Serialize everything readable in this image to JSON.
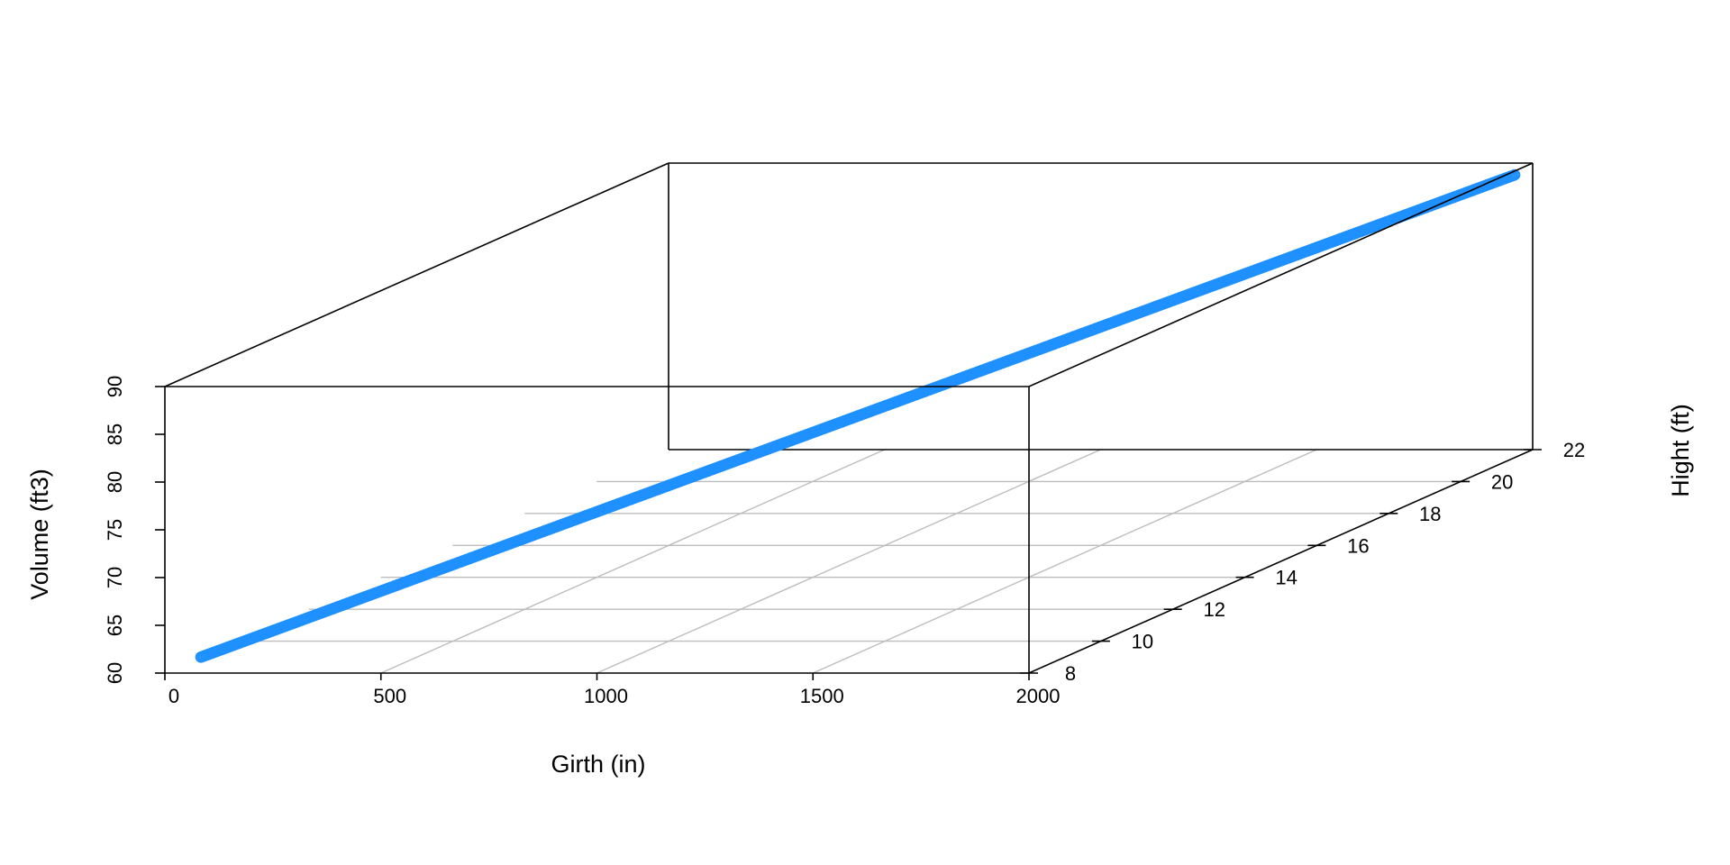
{
  "chart_data": {
    "type": "scatter",
    "title": "",
    "xlabel": "Girth (in)",
    "ylabel": "Hight (ft)",
    "zlabel": "Volume (ft3)",
    "xlim": [
      0,
      2000
    ],
    "ylim": [
      8,
      22
    ],
    "zlim": [
      60,
      90
    ],
    "x_ticks": [
      "0",
      "500",
      "1000",
      "1500",
      "2000"
    ],
    "y_ticks": [
      "8",
      "10",
      "12",
      "14",
      "16",
      "18",
      "20",
      "22"
    ],
    "z_ticks": [
      "60",
      "65",
      "70",
      "75",
      "80",
      "85",
      "90"
    ],
    "grid": true,
    "point_color": "#1E90FF",
    "series": [
      {
        "start": {
          "x": 50,
          "y": 8.4,
          "z": 61
        },
        "end": {
          "x": 2000,
          "y": 21.5,
          "z": 89.6
        },
        "count": 1000
      }
    ]
  }
}
